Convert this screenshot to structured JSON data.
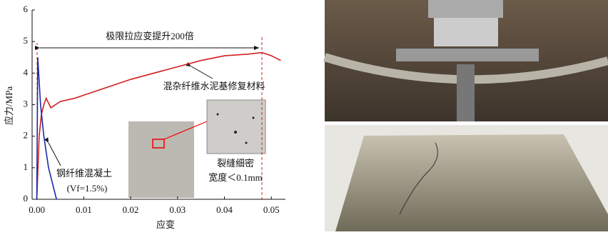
{
  "chart_data": {
    "type": "line",
    "y_label": "应力/MPa",
    "x_label": "应变",
    "xlim": [
      -0.001,
      0.053
    ],
    "ylim": [
      0,
      6
    ],
    "xticks": [
      {
        "value": 0,
        "label": "0.00"
      },
      0.01,
      0.02,
      0.03,
      0.04,
      0.05
    ],
    "yticks": [
      0,
      1,
      2,
      3,
      4,
      5,
      6
    ],
    "series": [
      {
        "name": "混杂纤维水泥基修复材料",
        "color": "#d22020",
        "x": [
          0,
          0.0005,
          0.001,
          0.0015,
          0.002,
          0.003,
          0.005,
          0.008,
          0.012,
          0.016,
          0.02,
          0.025,
          0.03,
          0.035,
          0.04,
          0.045,
          0.048,
          0.05,
          0.052
        ],
        "values": [
          0,
          2.0,
          2.7,
          3.0,
          3.2,
          2.9,
          3.1,
          3.2,
          3.4,
          3.6,
          3.8,
          4.0,
          4.2,
          4.4,
          4.55,
          4.6,
          4.65,
          4.55,
          4.4
        ]
      },
      {
        "name": "钢纤维混凝土",
        "color": "#1a2aa8",
        "x": [
          0,
          0.0002,
          0.0008,
          0.0015,
          0.0025,
          0.0042
        ],
        "values": [
          0,
          4.5,
          3.0,
          2.0,
          1.0,
          0
        ]
      }
    ],
    "annotations": {
      "range": "极限拉应变提升200倍",
      "vf": "(Vf=1.5%)",
      "crack": "裂缝细密",
      "width": "宽度＜0.1mm"
    }
  }
}
